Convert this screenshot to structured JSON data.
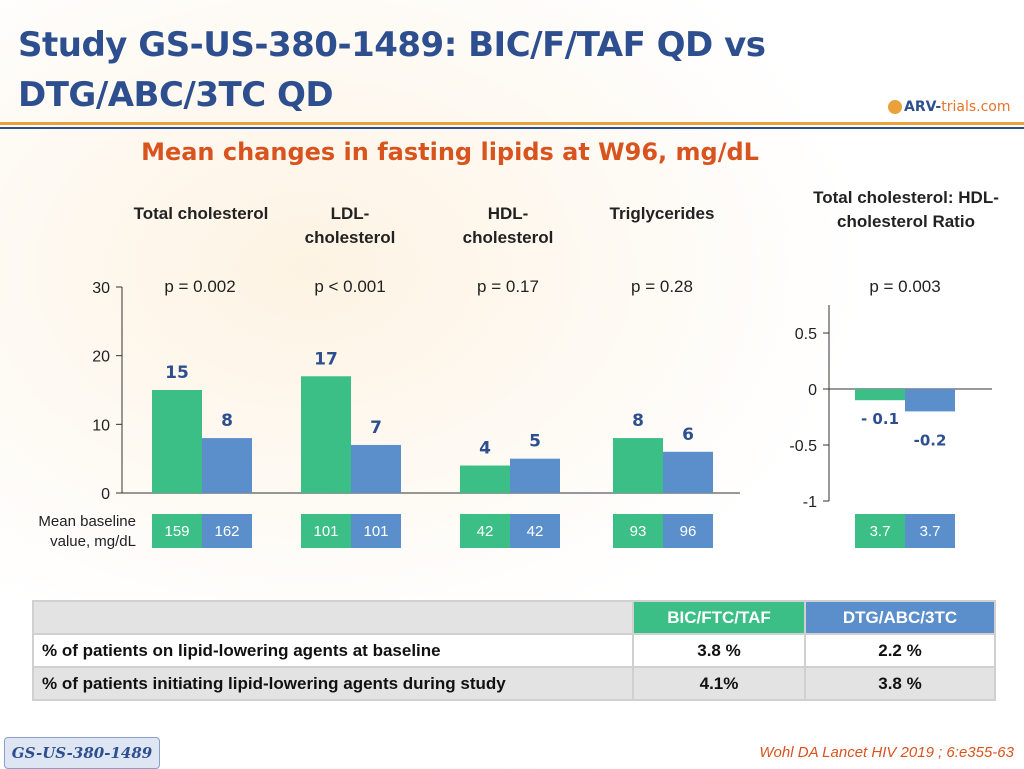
{
  "header": {
    "title": "Study GS-US-380-1489: BIC/F/TAF QD vs DTG/ABC/3TC QD",
    "subtitle": "Mean changes in fasting lipids at W96, mg/dL"
  },
  "logo": {
    "arv": "ARV-",
    "trials": "trials",
    "com": ".com"
  },
  "colors": {
    "series1": "#3cbf86",
    "series2": "#5b8fcb",
    "title": "#2e4f8f",
    "accent": "#d9531e"
  },
  "baseline_label": "Mean baseline value, mg/dL",
  "chart_data": [
    {
      "type": "bar",
      "categories": [
        "Total cholesterol",
        "LDL-cholesterol",
        "HDL-cholesterol",
        "Triglycerides"
      ],
      "series": [
        {
          "name": "BIC/FTC/TAF",
          "values": [
            15,
            17,
            4,
            8
          ],
          "labels": [
            "15",
            "17",
            "4",
            "8"
          ],
          "baselines": [
            "159",
            "101",
            "42",
            "93"
          ]
        },
        {
          "name": "DTG/ABC/3TC",
          "values": [
            8,
            7,
            5,
            6
          ],
          "labels": [
            "8",
            "7",
            "5",
            "6"
          ],
          "baselines": [
            "162",
            "101",
            "42",
            "96"
          ]
        }
      ],
      "pvalues": [
        "p = 0.002",
        "p < 0.001",
        "p = 0.17",
        "p = 0.28"
      ],
      "ylim": [
        0,
        30
      ],
      "yticks": [
        0,
        10,
        20,
        30
      ]
    },
    {
      "type": "bar",
      "categories": [
        "Total cholesterol: HDL-cholesterol Ratio"
      ],
      "series": [
        {
          "name": "BIC/FTC/TAF",
          "values": [
            -0.1
          ],
          "labels": [
            "- 0.1"
          ],
          "baselines": [
            "3.7"
          ]
        },
        {
          "name": "DTG/ABC/3TC",
          "values": [
            -0.2
          ],
          "labels": [
            "-0.2"
          ],
          "baselines": [
            "3.7"
          ]
        }
      ],
      "pvalues": [
        "p = 0.003"
      ],
      "ylim": [
        -1,
        0.75
      ],
      "yticks": [
        0.5,
        0,
        -0.5,
        -1
      ],
      "ytick_labels": [
        "0.5",
        "0",
        "-0.5",
        "-1"
      ]
    }
  ],
  "table": {
    "columns": [
      "BIC/FTC/TAF",
      "DTG/ABC/3TC"
    ],
    "rows": [
      {
        "label": "% of patients on lipid-lowering agents at baseline",
        "values": [
          "3.8 %",
          "2.2 %"
        ]
      },
      {
        "label": "% of patients initiating lipid-lowering agents during study",
        "values": [
          "4.1%",
          "3.8 %"
        ]
      }
    ]
  },
  "footer": {
    "badge": "GS-US-380-1489",
    "citation": "Wohl DA Lancet HIV 2019 ; 6:e355-63"
  }
}
